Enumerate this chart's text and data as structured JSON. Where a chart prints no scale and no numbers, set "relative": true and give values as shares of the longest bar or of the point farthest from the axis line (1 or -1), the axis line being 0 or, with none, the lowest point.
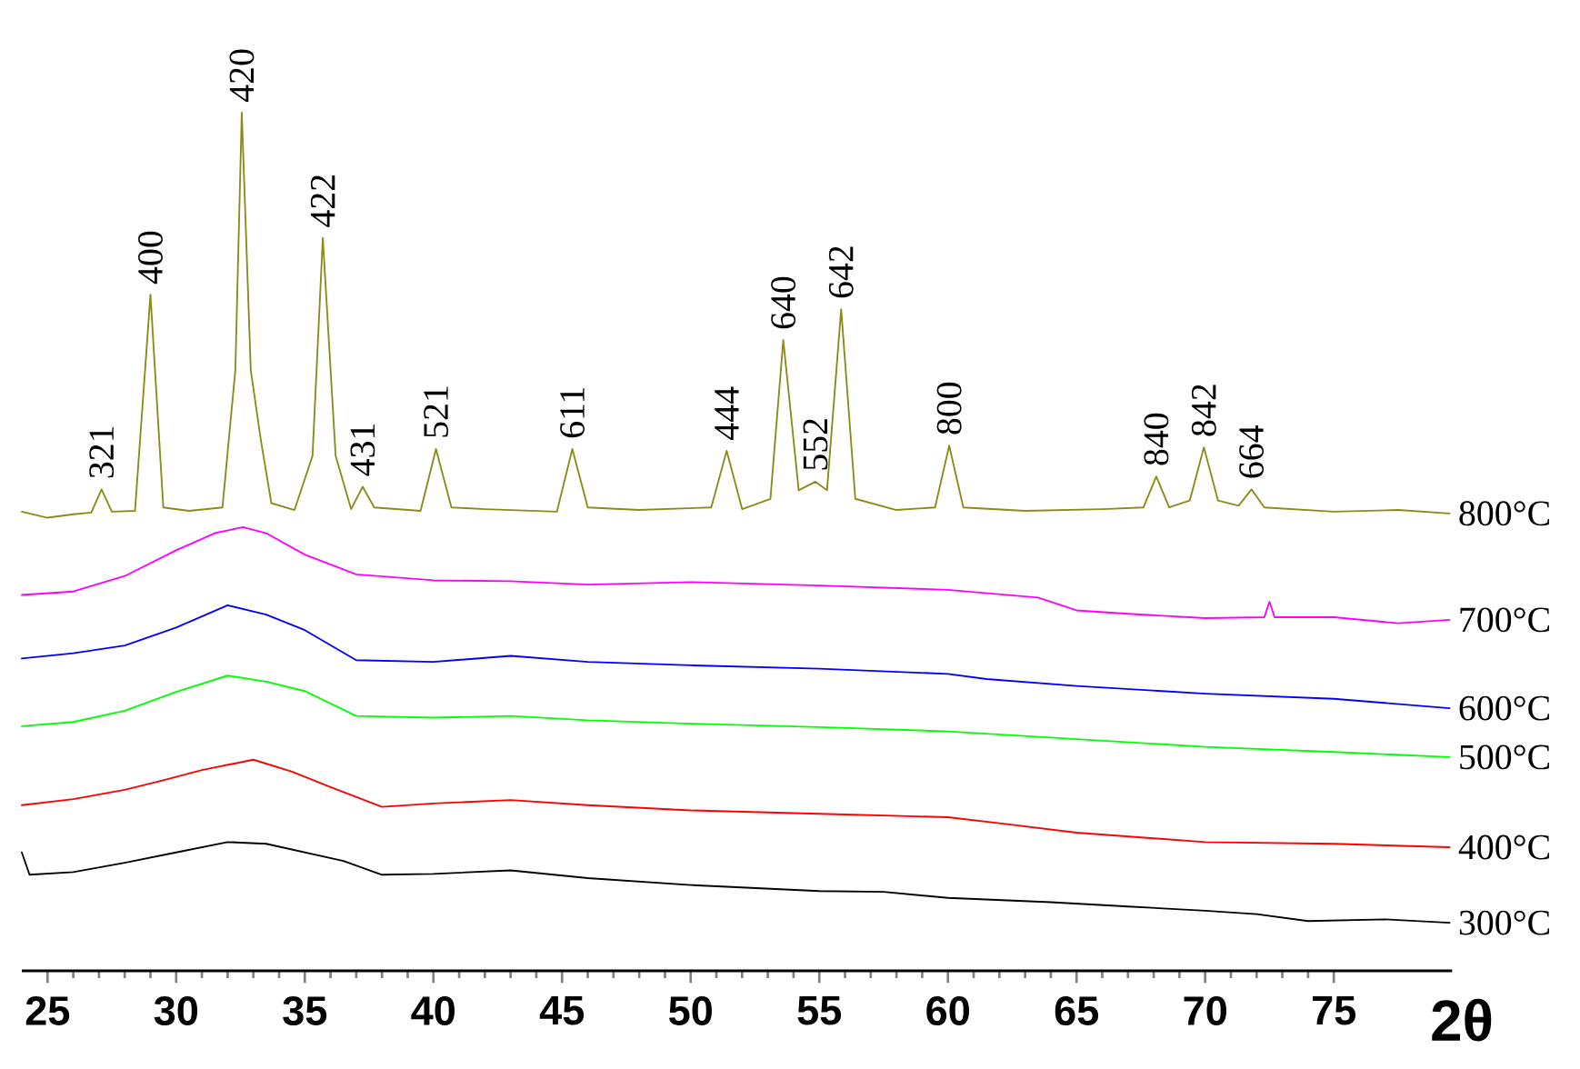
{
  "chart_data": {
    "type": "line",
    "relative": true,
    "xlabel": "2θ",
    "xlim": [
      24,
      79.6
    ],
    "xticks": [
      25,
      30,
      35,
      40,
      45,
      50,
      55,
      60,
      65,
      70,
      75
    ],
    "series": [
      {
        "name": "800°C",
        "color": "#8b8b1a",
        "x": [
          24,
          25,
          26,
          26.7,
          27.1,
          27.5,
          28.4,
          29.0,
          29.5,
          30.5,
          31.8,
          32.3,
          32.55,
          32.9,
          33.3,
          33.7,
          34.6,
          35.3,
          35.7,
          36.2,
          36.8,
          37.25,
          37.7,
          39.5,
          40.1,
          40.7,
          42,
          44.8,
          45.4,
          46,
          48,
          50.8,
          51.4,
          52,
          53.1,
          53.6,
          54.2,
          54.85,
          55.3,
          55.85,
          56.4,
          58,
          59.5,
          60.05,
          60.6,
          63,
          66,
          67.6,
          68.1,
          68.6,
          69.4,
          69.95,
          70.5,
          71.3,
          71.8,
          72.3,
          75,
          77.5,
          79.5
        ],
        "values": [
          0.535,
          0.528,
          0.532,
          0.534,
          0.561,
          0.535,
          0.536,
          0.788,
          0.54,
          0.536,
          0.54,
          0.7,
          1.0,
          0.7,
          0.617,
          0.545,
          0.537,
          0.6,
          0.854,
          0.6,
          0.538,
          0.564,
          0.54,
          0.536,
          0.608,
          0.54,
          0.538,
          0.535,
          0.608,
          0.54,
          0.537,
          0.54,
          0.606,
          0.538,
          0.55,
          0.735,
          0.56,
          0.57,
          0.56,
          0.771,
          0.55,
          0.537,
          0.54,
          0.612,
          0.54,
          0.536,
          0.538,
          0.54,
          0.576,
          0.54,
          0.548,
          0.61,
          0.548,
          0.542,
          0.561,
          0.54,
          0.535,
          0.537,
          0.533
        ]
      },
      {
        "name": "700°C",
        "color": "#ff00ff",
        "x": [
          24,
          26,
          28,
          30,
          31.5,
          32.6,
          33.5,
          35,
          37,
          40,
          43,
          46,
          50,
          55,
          60,
          63.5,
          65,
          67,
          70,
          72.3,
          72.5,
          72.7,
          75,
          77.5,
          79.5
        ],
        "values": [
          0.438,
          0.442,
          0.46,
          0.49,
          0.51,
          0.517,
          0.51,
          0.485,
          0.462,
          0.455,
          0.454,
          0.45,
          0.453,
          0.449,
          0.444,
          0.435,
          0.42,
          0.416,
          0.411,
          0.412,
          0.43,
          0.412,
          0.412,
          0.405,
          0.409
        ]
      },
      {
        "name": "600°C",
        "color": "#0000ff",
        "x": [
          24,
          26,
          28,
          30,
          32,
          33.5,
          35,
          37,
          40,
          43,
          46,
          50,
          55,
          60,
          61.5,
          65,
          70,
          75,
          79.5
        ],
        "values": [
          0.364,
          0.37,
          0.379,
          0.4,
          0.426,
          0.415,
          0.397,
          0.362,
          0.36,
          0.367,
          0.36,
          0.356,
          0.352,
          0.346,
          0.34,
          0.332,
          0.323,
          0.317,
          0.306
        ]
      },
      {
        "name": "500°C",
        "color": "#00ff00",
        "x": [
          24,
          26,
          28,
          30,
          32,
          33.5,
          35,
          37,
          40,
          43,
          46,
          50,
          55,
          60,
          65,
          70,
          75,
          79.5
        ],
        "values": [
          0.285,
          0.29,
          0.303,
          0.325,
          0.344,
          0.337,
          0.326,
          0.297,
          0.295,
          0.297,
          0.292,
          0.288,
          0.284,
          0.279,
          0.27,
          0.261,
          0.255,
          0.249
        ]
      },
      {
        "name": "400°C",
        "color": "#ff0000",
        "x": [
          24,
          26,
          28,
          29.5,
          31,
          33,
          34.5,
          36,
          38,
          40,
          43,
          46,
          50,
          55,
          60,
          62,
          65,
          70,
          75,
          79.5
        ],
        "values": [
          0.193,
          0.2,
          0.211,
          0.222,
          0.234,
          0.246,
          0.232,
          0.214,
          0.191,
          0.195,
          0.199,
          0.193,
          0.187,
          0.183,
          0.179,
          0.172,
          0.161,
          0.15,
          0.148,
          0.144
        ]
      },
      {
        "name": "300°C",
        "color": "#000000",
        "x": [
          24,
          24.3,
          26,
          28,
          30,
          32,
          33.5,
          35,
          36.5,
          38,
          40,
          43,
          46,
          50,
          55,
          57.5,
          60,
          64,
          67,
          70,
          72,
          74,
          77,
          79.5
        ],
        "values": [
          0.138,
          0.112,
          0.115,
          0.126,
          0.138,
          0.15,
          0.148,
          0.138,
          0.128,
          0.112,
          0.113,
          0.117,
          0.108,
          0.1,
          0.093,
          0.092,
          0.085,
          0.08,
          0.075,
          0.07,
          0.066,
          0.058,
          0.06,
          0.056
        ]
      }
    ],
    "annotations": [
      {
        "text": "321",
        "x": 27.1,
        "y": 0.561
      },
      {
        "text": "400",
        "x": 29.0,
        "y": 0.788
      },
      {
        "text": "420",
        "x": 32.55,
        "y": 1.0
      },
      {
        "text": "422",
        "x": 35.7,
        "y": 0.854
      },
      {
        "text": "431",
        "x": 37.25,
        "y": 0.564
      },
      {
        "text": "521",
        "x": 40.1,
        "y": 0.608
      },
      {
        "text": "611",
        "x": 45.4,
        "y": 0.608
      },
      {
        "text": "444",
        "x": 51.4,
        "y": 0.606
      },
      {
        "text": "640",
        "x": 53.6,
        "y": 0.735
      },
      {
        "text": "552",
        "x": 54.85,
        "y": 0.57
      },
      {
        "text": "642",
        "x": 55.85,
        "y": 0.771
      },
      {
        "text": "800",
        "x": 60.05,
        "y": 0.612
      },
      {
        "text": "840",
        "x": 68.1,
        "y": 0.576
      },
      {
        "text": "842",
        "x": 69.95,
        "y": 0.61
      },
      {
        "text": "664",
        "x": 71.8,
        "y": 0.561
      }
    ]
  }
}
